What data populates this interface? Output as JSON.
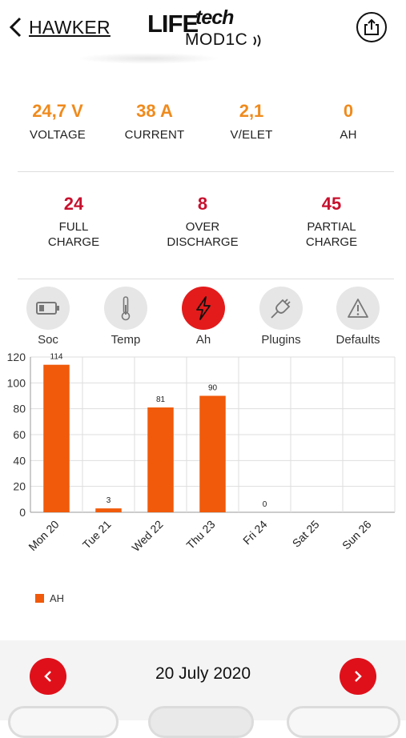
{
  "header": {
    "back_label": "HAWKER",
    "logo_life": "LIFE",
    "logo_tech": "tech",
    "logo_mod": "MOD1C"
  },
  "stats_top": [
    {
      "value": "24,7 V",
      "label": "VOLTAGE"
    },
    {
      "value": "38 A",
      "label": "CURRENT"
    },
    {
      "value": "2,1",
      "label": "V/ELET"
    },
    {
      "value": "0",
      "label": "AH"
    }
  ],
  "stats_bottom": [
    {
      "value": "24",
      "label_line1": "FULL",
      "label_line2": "CHARGE"
    },
    {
      "value": "8",
      "label_line1": "OVER",
      "label_line2": "DISCHARGE"
    },
    {
      "value": "45",
      "label_line1": "PARTIAL",
      "label_line2": "CHARGE"
    }
  ],
  "tabs": [
    {
      "label": "Soc",
      "icon": "battery-icon",
      "active": false
    },
    {
      "label": "Temp",
      "icon": "thermometer-icon",
      "active": false
    },
    {
      "label": "Ah",
      "icon": "lightning-icon",
      "active": true
    },
    {
      "label": "Plugins",
      "icon": "plug-icon",
      "active": false
    },
    {
      "label": "Defaults",
      "icon": "warning-icon",
      "active": false
    }
  ],
  "colors": {
    "accent_orange": "#f08a1c",
    "accent_red": "#c8102e",
    "bar": "#f05a0a",
    "active_tab": "#e31b1b",
    "nav_button": "#e0101a"
  },
  "chart_data": {
    "type": "bar",
    "categories": [
      "Mon 20",
      "Tue 21",
      "Wed 22",
      "Thu 23",
      "Fri 24",
      "Sat 25",
      "Sun 26"
    ],
    "series": [
      {
        "name": "AH",
        "values": [
          114,
          3,
          81,
          90,
          0,
          null,
          null
        ]
      }
    ],
    "data_labels": [
      "114",
      "3",
      "81",
      "90",
      "0",
      "",
      ""
    ],
    "ylim": [
      0,
      120
    ],
    "yticks": [
      0,
      20,
      40,
      60,
      80,
      100,
      120
    ],
    "grid": true,
    "legend": "bottom-left"
  },
  "footer": {
    "date": "20 July 2020"
  }
}
